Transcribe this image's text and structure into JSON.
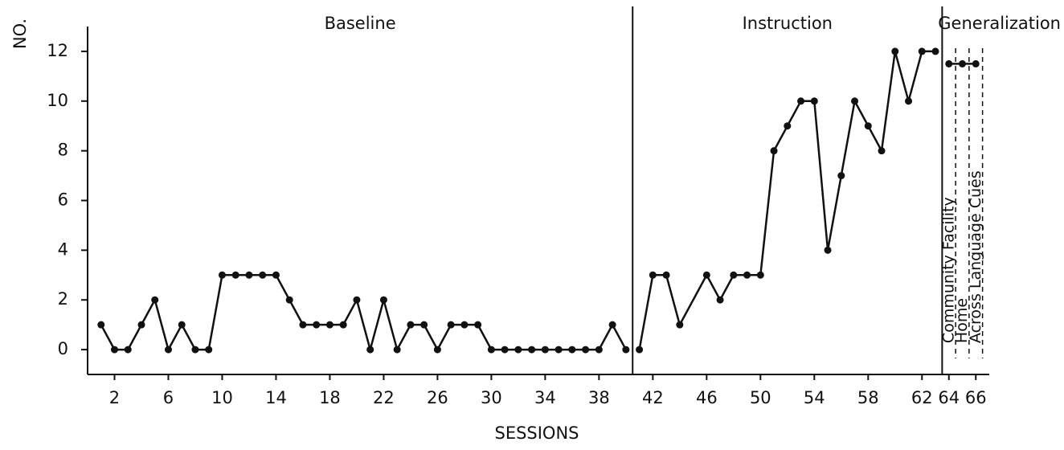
{
  "chart_data": {
    "type": "line",
    "xlabel": "SESSIONS",
    "ylabel": "NO.",
    "xlim": [
      0,
      67
    ],
    "ylim": [
      -1,
      13
    ],
    "xticks": [
      2,
      6,
      10,
      14,
      18,
      22,
      26,
      30,
      34,
      38,
      42,
      46,
      50,
      54,
      58,
      62,
      64,
      66
    ],
    "yticks": [
      0,
      2,
      4,
      6,
      8,
      10,
      12
    ],
    "phases": [
      "Baseline",
      "Instruction",
      "Generalization"
    ],
    "phase_lines": [
      40.5,
      63.5
    ],
    "conditions": [
      "Community Facility",
      "Home",
      "Across Language Cues"
    ],
    "condition_lines": [
      64.5,
      65.5,
      66.5
    ],
    "series": [
      {
        "name": "Baseline",
        "color": "#111111",
        "x": [
          1,
          2,
          3,
          4,
          5,
          6,
          7,
          8,
          9,
          10,
          11,
          12,
          13,
          14,
          15,
          16,
          17,
          18,
          19,
          20,
          21,
          22,
          23,
          24,
          25,
          26,
          27,
          28,
          29,
          30,
          31,
          32,
          33,
          34,
          35,
          36,
          37,
          38,
          39,
          40
        ],
        "values": [
          1,
          0,
          0,
          1,
          2,
          0,
          1,
          0,
          0,
          3,
          3,
          3,
          3,
          3,
          2,
          1,
          1,
          1,
          1,
          2,
          0,
          2,
          0,
          1,
          1,
          0,
          1,
          1,
          1,
          0,
          0,
          0,
          0,
          0,
          0,
          0,
          0,
          0,
          1,
          0
        ]
      },
      {
        "name": "Instruction",
        "color": "#111111",
        "x": [
          41,
          42,
          43,
          44,
          46,
          47,
          48,
          49,
          50,
          51,
          52,
          53,
          54,
          55,
          56,
          57,
          58,
          59,
          60,
          61,
          62,
          63
        ],
        "values": [
          0,
          3,
          3,
          1,
          3,
          2,
          3,
          3,
          3,
          8,
          9,
          10,
          10,
          4,
          7,
          10,
          9,
          8,
          12,
          10,
          12,
          12
        ]
      },
      {
        "name": "Generalization",
        "color": "#111111",
        "x": [
          64,
          65,
          66
        ],
        "values": [
          11.5,
          11.5,
          11.5
        ]
      }
    ]
  }
}
